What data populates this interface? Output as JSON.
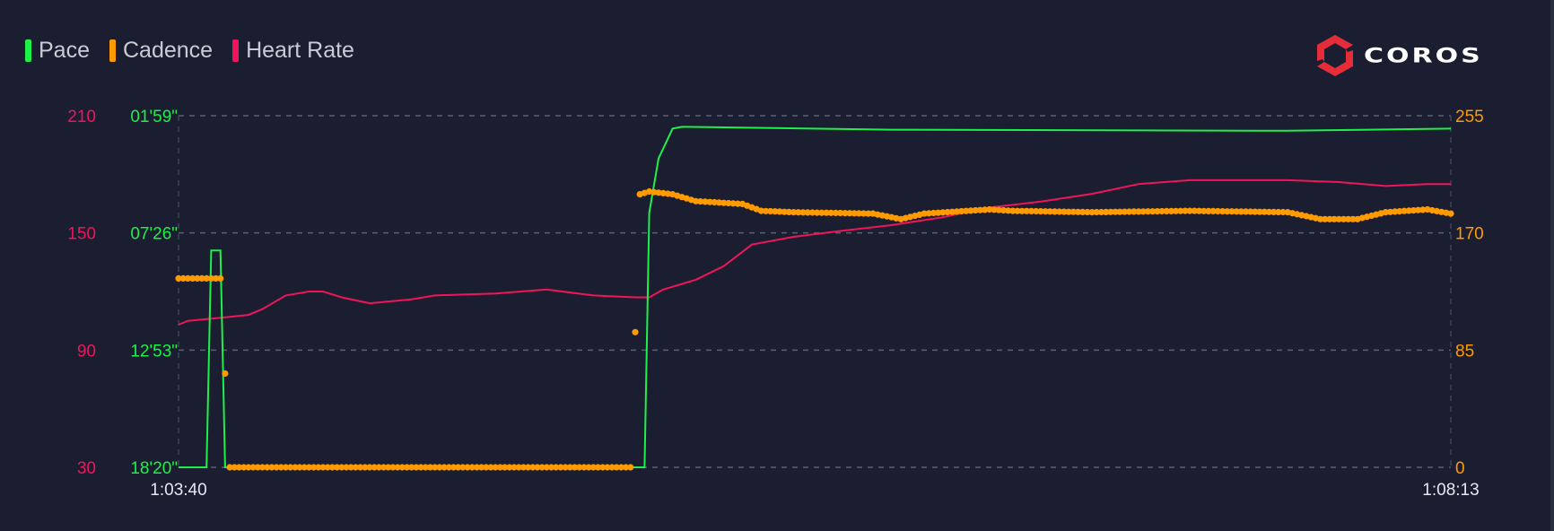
{
  "legend": [
    {
      "label": "Pace",
      "color": "#1ef04a"
    },
    {
      "label": "Cadence",
      "color": "#ff9a00"
    },
    {
      "label": "Heart Rate",
      "color": "#f0155a"
    }
  ],
  "logo": {
    "text": "COROS",
    "color": "#e52d3a"
  },
  "chart_data": {
    "type": "line",
    "grid": true,
    "legend_position": "top-left",
    "x_axis": {
      "range": [
        "1:03:40",
        "1:08:13"
      ],
      "tick_labels": [
        "1:03:40",
        "1:08:13"
      ]
    },
    "y_axes": {
      "heart_rate": {
        "side": "left-outer",
        "range": [
          30,
          210
        ],
        "tick_labels": [
          "30",
          "90",
          "150",
          "210"
        ],
        "color": "#f0155a"
      },
      "pace": {
        "side": "left-inner",
        "range": [
          "18'20\"",
          "01'59\""
        ],
        "tick_labels": [
          "18'20\"",
          "12'53\"",
          "07'26\"",
          "01'59\""
        ],
        "color": "#1ef04a"
      },
      "cadence": {
        "side": "right",
        "range": [
          0,
          255
        ],
        "tick_labels": [
          "0",
          "85",
          "170",
          "255"
        ],
        "color": "#ff9a00"
      }
    },
    "series": [
      {
        "name": "Pace",
        "axis": "pace",
        "style": "line",
        "color": "#1ef04a",
        "points": [
          [
            "1:03:40",
            "18'20\""
          ],
          [
            "1:03:46",
            "18'20\""
          ],
          [
            "1:03:47",
            "08'15\""
          ],
          [
            "1:03:49",
            "08'15\""
          ],
          [
            "1:03:50",
            "18'20\""
          ],
          [
            "1:05:20",
            "18'20\""
          ],
          [
            "1:05:21",
            "06'30\""
          ],
          [
            "1:05:23",
            "03'58\""
          ],
          [
            "1:05:25",
            "03'03\""
          ],
          [
            "1:05:26",
            "02'35\""
          ],
          [
            "1:05:28",
            "02'30\""
          ],
          [
            "1:06:13",
            "02'38\""
          ],
          [
            "1:07:38",
            "02'41\""
          ],
          [
            "1:08:13",
            "02'35\""
          ]
        ]
      },
      {
        "name": "Cadence",
        "axis": "cadence",
        "style": "dots",
        "color": "#ff9a00",
        "points": [
          [
            "1:03:40",
            137
          ],
          [
            "1:03:49",
            137
          ],
          [
            "1:03:50",
            68
          ],
          [
            "1:03:51",
            0
          ],
          [
            "1:05:17",
            0
          ],
          [
            "1:05:18",
            98
          ],
          [
            "1:05:19",
            198
          ],
          [
            "1:05:21",
            200
          ],
          [
            "1:05:26",
            198
          ],
          [
            "1:05:31",
            193
          ],
          [
            "1:05:41",
            191
          ],
          [
            "1:05:45",
            186
          ],
          [
            "1:05:52",
            185
          ],
          [
            "1:06:09",
            184
          ],
          [
            "1:06:15",
            180
          ],
          [
            "1:06:20",
            184
          ],
          [
            "1:06:34",
            187
          ],
          [
            "1:06:39",
            186
          ],
          [
            "1:06:56",
            185
          ],
          [
            "1:07:17",
            186
          ],
          [
            "1:07:38",
            185
          ],
          [
            "1:07:45",
            180
          ],
          [
            "1:07:53",
            180
          ],
          [
            "1:07:59",
            185
          ],
          [
            "1:08:08",
            187
          ],
          [
            "1:08:13",
            184
          ]
        ]
      },
      {
        "name": "Heart Rate",
        "axis": "heart_rate",
        "style": "line",
        "color": "#f0155a",
        "points": [
          [
            "1:03:40",
            103
          ],
          [
            "1:03:42",
            105
          ],
          [
            "1:03:51",
            107
          ],
          [
            "1:03:55",
            108
          ],
          [
            "1:03:58",
            111
          ],
          [
            "1:04:03",
            118
          ],
          [
            "1:04:08",
            120
          ],
          [
            "1:04:11",
            120
          ],
          [
            "1:04:15",
            117
          ],
          [
            "1:04:21",
            114
          ],
          [
            "1:04:30",
            116
          ],
          [
            "1:04:35",
            118
          ],
          [
            "1:04:48",
            119
          ],
          [
            "1:04:59",
            121
          ],
          [
            "1:05:09",
            118
          ],
          [
            "1:05:18",
            117
          ],
          [
            "1:05:21",
            117
          ],
          [
            "1:05:24",
            121
          ],
          [
            "1:05:31",
            126
          ],
          [
            "1:05:37",
            133
          ],
          [
            "1:05:43",
            144
          ],
          [
            "1:05:52",
            148
          ],
          [
            "1:06:02",
            151
          ],
          [
            "1:06:13",
            154
          ],
          [
            "1:06:24",
            158
          ],
          [
            "1:06:34",
            163
          ],
          [
            "1:06:45",
            166
          ],
          [
            "1:06:56",
            170
          ],
          [
            "1:07:06",
            175
          ],
          [
            "1:07:17",
            177
          ],
          [
            "1:07:38",
            177
          ],
          [
            "1:07:49",
            176
          ],
          [
            "1:07:59",
            174
          ],
          [
            "1:08:08",
            175
          ],
          [
            "1:08:13",
            175
          ]
        ]
      }
    ]
  }
}
